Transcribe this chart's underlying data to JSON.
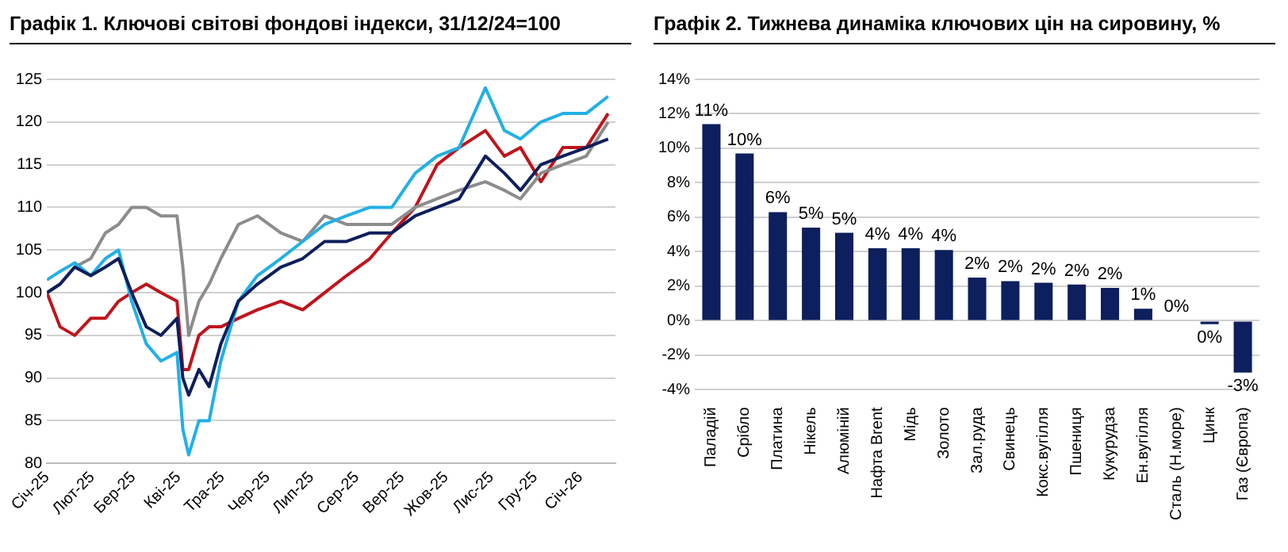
{
  "chart_data": [
    {
      "type": "line",
      "title": "Графік 1. Ключові світові фондові індекси, 31/12/24=100",
      "x": [
        "2025-01-01",
        "2025-01-10",
        "2025-01-20",
        "2025-01-31",
        "2025-02-10",
        "2025-02-19",
        "2025-02-28",
        "2025-03-10",
        "2025-03-20",
        "2025-03-31",
        "2025-04-04",
        "2025-04-08",
        "2025-04-15",
        "2025-04-22",
        "2025-04-30",
        "2025-05-12",
        "2025-05-25",
        "2025-06-10",
        "2025-06-25",
        "2025-07-10",
        "2025-07-25",
        "2025-08-10",
        "2025-08-25",
        "2025-09-10",
        "2025-09-25",
        "2025-10-10",
        "2025-10-28",
        "2025-11-10",
        "2025-11-21",
        "2025-12-05",
        "2025-12-20",
        "2026-01-05",
        "2026-01-20"
      ],
      "series": [
        {
          "color": "#0d1f5c",
          "values": [
            100,
            101,
            103,
            102,
            103,
            104,
            100,
            96,
            95,
            97,
            90,
            88,
            91,
            89,
            94,
            99,
            101,
            103,
            104,
            106,
            106,
            107,
            107,
            109,
            110,
            111,
            116,
            114,
            112,
            115,
            116,
            117,
            118
          ]
        },
        {
          "color": "#22b0e6",
          "values": [
            101.5,
            102.5,
            103.5,
            102,
            104,
            105,
            99,
            94,
            92,
            93,
            84,
            81,
            85,
            85,
            92,
            99,
            102,
            104,
            106,
            108,
            109,
            110,
            110,
            114,
            116,
            117,
            124,
            119,
            118,
            120,
            121,
            121,
            123
          ]
        },
        {
          "color": "#8c8c8c",
          "values": [
            100,
            101,
            103,
            104,
            107,
            108,
            110,
            110,
            109,
            109,
            103,
            95,
            99,
            101,
            104,
            108,
            109,
            107,
            106,
            109,
            108,
            108,
            108,
            110,
            111,
            112,
            113,
            112,
            111,
            114,
            115,
            116,
            120
          ]
        },
        {
          "color": "#c0141c",
          "values": [
            100,
            96,
            95,
            97,
            97,
            99,
            100,
            101,
            100,
            99,
            91,
            91,
            95,
            96,
            96,
            97,
            98,
            99,
            98,
            100,
            102,
            104,
            107,
            110,
            115,
            117,
            119,
            116,
            117,
            113,
            117,
            117,
            121
          ]
        }
      ],
      "xlim": [
        "2025-01-01",
        "2026-01-25"
      ],
      "xticks": [
        {
          "value": "2025-01-01",
          "label": "Січ-25"
        },
        {
          "value": "2025-02-01",
          "label": "Лют-25"
        },
        {
          "value": "2025-03-01",
          "label": "Бер-25"
        },
        {
          "value": "2025-04-01",
          "label": "Кві-25"
        },
        {
          "value": "2025-05-01",
          "label": "Тра-25"
        },
        {
          "value": "2025-06-01",
          "label": "Чер-25"
        },
        {
          "value": "2025-07-01",
          "label": "Лип-25"
        },
        {
          "value": "2025-08-01",
          "label": "Сер-25"
        },
        {
          "value": "2025-09-01",
          "label": "Вер-25"
        },
        {
          "value": "2025-10-01",
          "label": "Жов-25"
        },
        {
          "value": "2025-11-01",
          "label": "Лис-25"
        },
        {
          "value": "2025-12-01",
          "label": "Гру-25"
        },
        {
          "value": "2026-01-01",
          "label": "Січ-26"
        }
      ],
      "ylim": [
        80,
        125
      ],
      "yticks": [
        80,
        85,
        90,
        95,
        100,
        105,
        110,
        115,
        120,
        125
      ],
      "grid": "y",
      "marker": "none",
      "line_style": "solid"
    },
    {
      "type": "bar",
      "title": "Графік 2. Тижнева динаміка ключових цін на сировину, %",
      "categories": [
        "Паладій",
        "Срібло",
        "Платина",
        "Нікель",
        "Алюміній",
        "Нафта Brent",
        "Мідь",
        "Золото",
        "Зал.руда",
        "Свинець",
        "Кокс.вугілля",
        "Пшениця",
        "Кукурудза",
        "Ен.вугілля",
        "Сталь (Н.море)",
        "Цинк",
        "Газ (Європа)"
      ],
      "values": [
        11.4,
        9.7,
        6.3,
        5.4,
        5.1,
        4.2,
        4.2,
        4.1,
        2.5,
        2.3,
        2.2,
        2.1,
        1.9,
        0.7,
        0.0,
        -0.2,
        -3.0
      ],
      "value_labels": [
        "11%",
        "10%",
        "6%",
        "5%",
        "5%",
        "4%",
        "4%",
        "4%",
        "2%",
        "2%",
        "2%",
        "2%",
        "2%",
        "1%",
        "0%",
        "0%",
        "-3%"
      ],
      "color": "#0d1f5c",
      "ylim": [
        -4,
        14
      ],
      "yticks": [
        {
          "value": -4,
          "label": "-4%"
        },
        {
          "value": -2,
          "label": "-2%"
        },
        {
          "value": 0,
          "label": "0%"
        },
        {
          "value": 2,
          "label": "2%"
        },
        {
          "value": 4,
          "label": "4%"
        },
        {
          "value": 6,
          "label": "6%"
        },
        {
          "value": 8,
          "label": "8%"
        },
        {
          "value": 10,
          "label": "10%"
        },
        {
          "value": 12,
          "label": "12%"
        },
        {
          "value": 14,
          "label": "14%"
        }
      ],
      "grid": "y"
    }
  ]
}
